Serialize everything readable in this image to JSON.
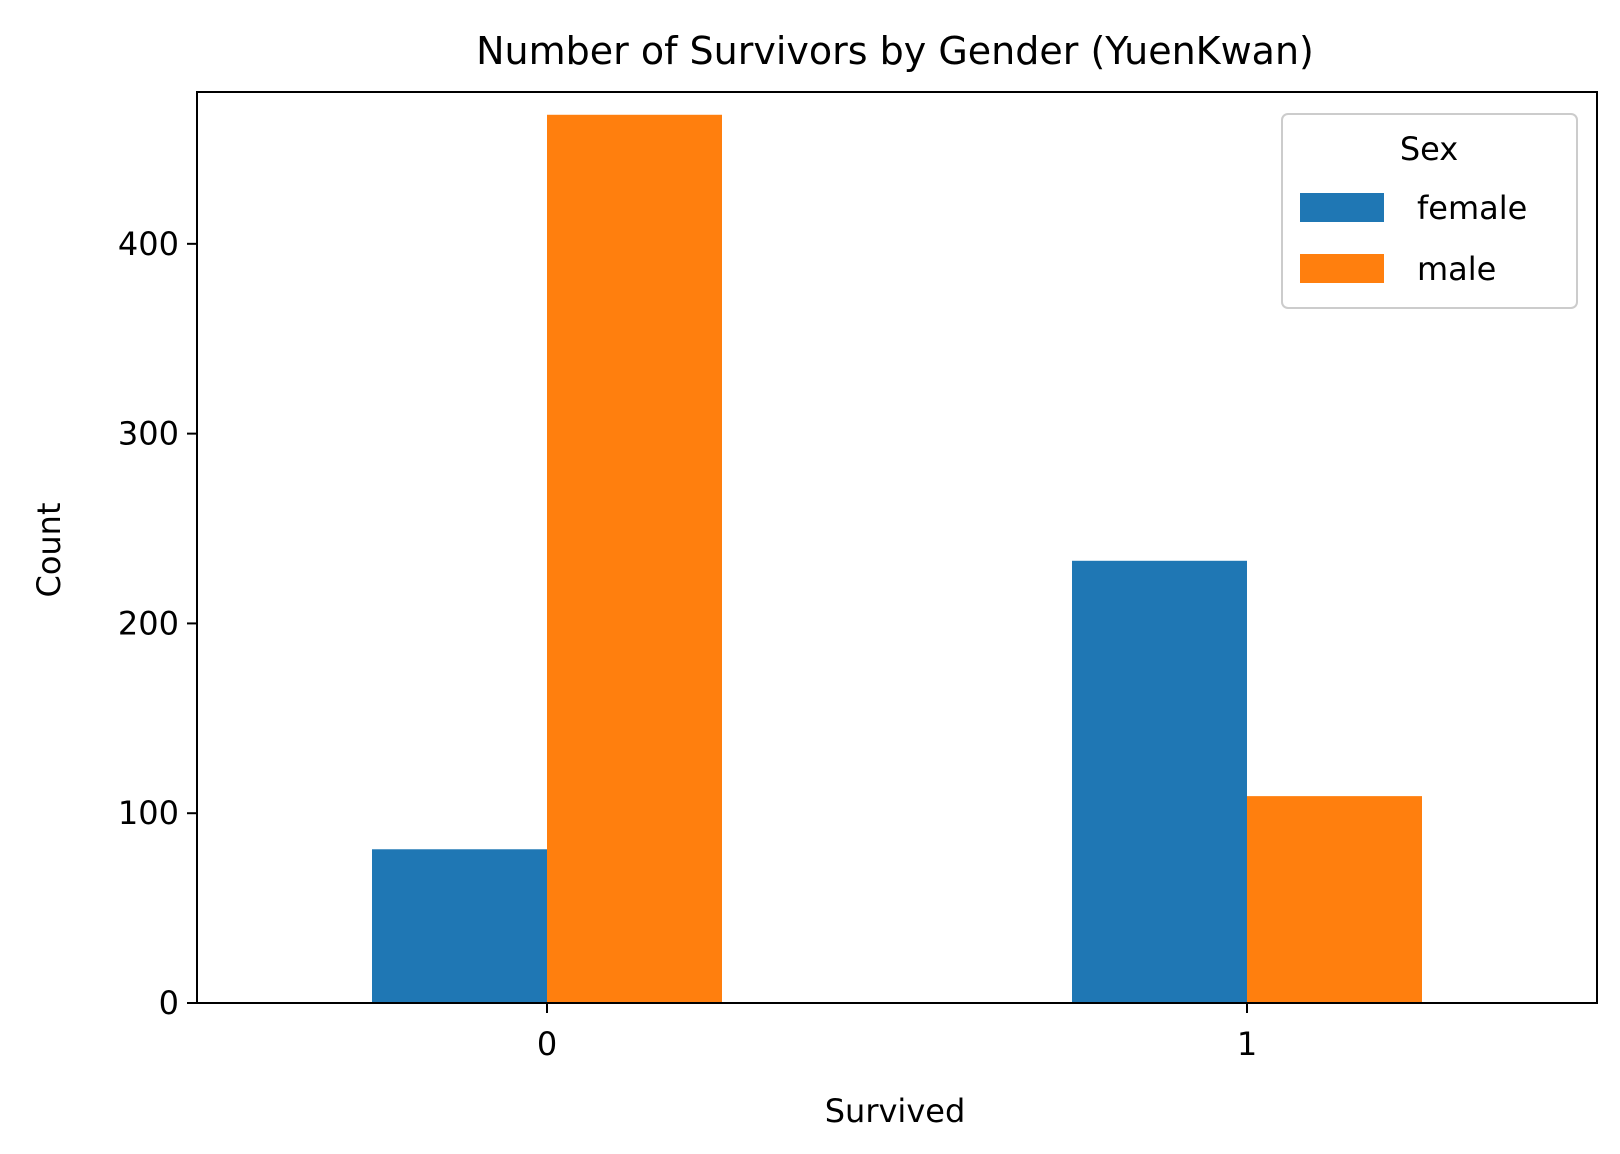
{
  "chart_data": {
    "type": "bar",
    "title": "Number of Survivors by Gender (YuenKwan)",
    "xlabel": "Survived",
    "ylabel": "Count",
    "categories": [
      "0",
      "1"
    ],
    "series": [
      {
        "name": "female",
        "values": [
          81,
          233
        ],
        "color": "#1f77b4"
      },
      {
        "name": "male",
        "values": [
          468,
          109
        ],
        "color": "#ff7f0e"
      }
    ],
    "ylim": [
      0,
      480
    ],
    "yticks": [
      0,
      100,
      200,
      300,
      400
    ],
    "legend": {
      "title": "Sex",
      "placement": "top-right"
    },
    "grid": false
  }
}
